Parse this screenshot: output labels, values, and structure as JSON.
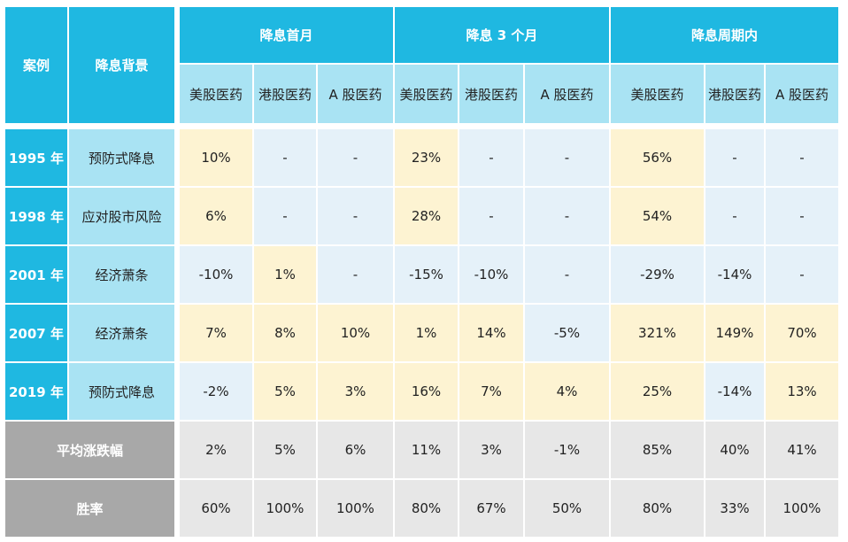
{
  "header": {
    "case": "案例",
    "background": "降息背景",
    "groups": [
      "降息首月",
      "降息 3 个月",
      "降息周期内"
    ],
    "subheaders": [
      "美股医药",
      "港股医药",
      "A 股医药",
      "美股医药",
      "港股医药",
      "A 股医药",
      "美股医药",
      "港股医药",
      "A 股医药"
    ]
  },
  "rows": [
    {
      "case": "1995 年",
      "background": "预防式降息",
      "values": [
        "10%",
        "-",
        "-",
        "23%",
        "-",
        "-",
        "56%",
        "-",
        "-"
      ]
    },
    {
      "case": "1998 年",
      "background": "应对股市风险",
      "values": [
        "6%",
        "-",
        "-",
        "28%",
        "-",
        "-",
        "54%",
        "-",
        "-"
      ]
    },
    {
      "case": "2001 年",
      "background": "经济萧条",
      "values": [
        "-10%",
        "1%",
        "-",
        "-15%",
        "-10%",
        "-",
        "-29%",
        "-14%",
        "-"
      ]
    },
    {
      "case": "2007 年",
      "background": "经济萧条",
      "values": [
        "7%",
        "8%",
        "10%",
        "1%",
        "14%",
        "-5%",
        "321%",
        "149%",
        "70%"
      ]
    },
    {
      "case": "2019 年",
      "background": "预防式降息",
      "values": [
        "-2%",
        "5%",
        "3%",
        "16%",
        "7%",
        "4%",
        "25%",
        "-14%",
        "13%"
      ]
    }
  ],
  "summary": [
    {
      "label": "平均涨跌幅",
      "values": [
        "2%",
        "5%",
        "6%",
        "11%",
        "3%",
        "-1%",
        "85%",
        "40%",
        "41%"
      ]
    },
    {
      "label": "胜率",
      "values": [
        "60%",
        "100%",
        "100%",
        "80%",
        "67%",
        "50%",
        "80%",
        "33%",
        "100%"
      ]
    }
  ]
}
